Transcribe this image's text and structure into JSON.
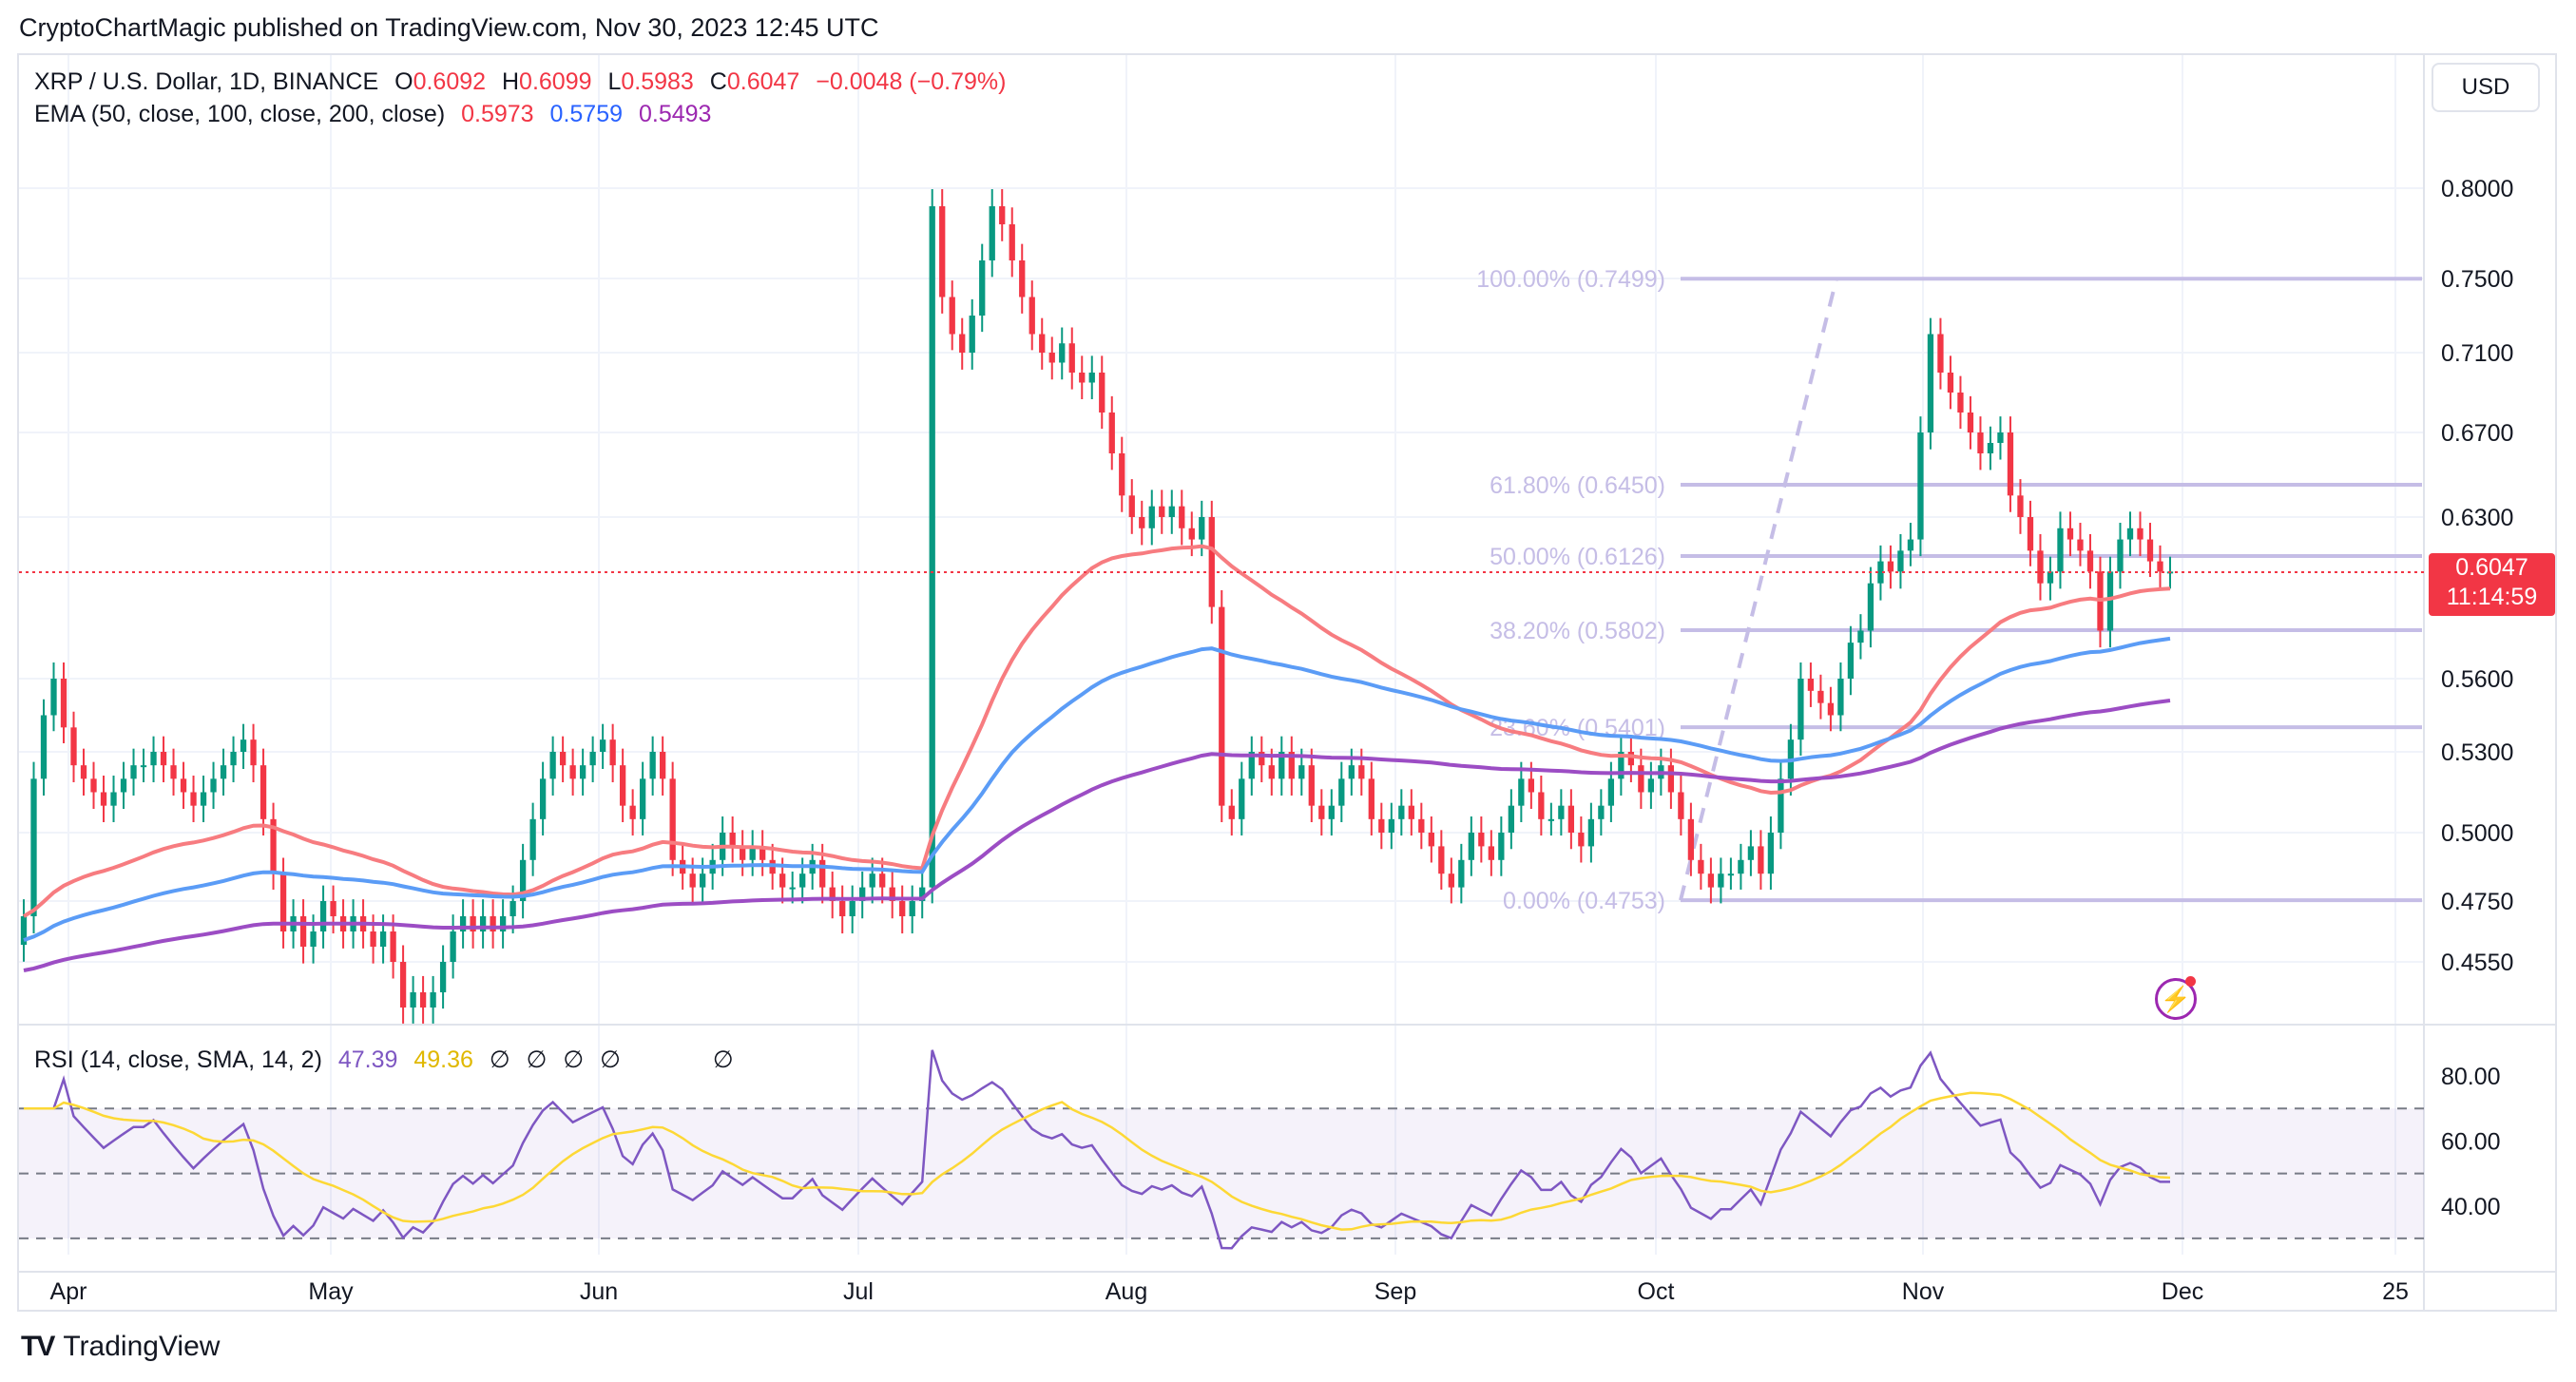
{
  "publisher": "CryptoChartMagic published on TradingView.com, Nov 30, 2023 12:45 UTC",
  "legend": {
    "symbol": "XRP / U.S. Dollar, 1D, BINANCE",
    "o_label": "O",
    "o": "0.6092",
    "h_label": "H",
    "h": "0.6099",
    "l_label": "L",
    "l": "0.5983",
    "c_label": "C",
    "c": "0.6047",
    "change": "−0.0048 (−0.79%)",
    "ema_label": "EMA (50, close, 100, close, 200, close)",
    "ema50": "0.5973",
    "ema100": "0.5759",
    "ema200": "0.5493",
    "rsi_label": "RSI (14, close, SMA, 14, 2)",
    "rsi": "47.39",
    "rsi_sma": "49.36",
    "na_glyph": "∅"
  },
  "currency": "USD",
  "last_price": "0.6047",
  "countdown": "11:14:59",
  "brand": "TradingView",
  "brand_mark": "TV",
  "bolt_icon": "⚡",
  "colors": {
    "up": "#089981",
    "down": "#f23645",
    "ema50": "#f77c80",
    "ema100": "#5b9cf6",
    "ema200": "#9c4dc4",
    "rsi": "#7e57c2",
    "rsi_sma": "#fdd835",
    "fib": "#c5bde6"
  },
  "chart_data": [
    {
      "type": "candlestick",
      "title": "XRP / U.S. Dollar, 1D, BINANCE",
      "price_axis_ticks": [
        "0.8000",
        "0.7500",
        "0.7100",
        "0.6700",
        "0.6300",
        "0.5600",
        "0.5300",
        "0.5000",
        "0.4750",
        "0.4550"
      ],
      "time_axis_ticks": [
        "Apr",
        "May",
        "Jun",
        "Jul",
        "Aug",
        "Sep",
        "Oct",
        "Nov",
        "Dec",
        "25"
      ],
      "ohlc_last": {
        "open": 0.6092,
        "high": 0.6099,
        "low": 0.5983,
        "close": 0.6047
      },
      "candles_close": [
        0.47,
        0.52,
        0.545,
        0.56,
        0.54,
        0.525,
        0.52,
        0.515,
        0.51,
        0.515,
        0.52,
        0.525,
        0.525,
        0.53,
        0.525,
        0.52,
        0.515,
        0.51,
        0.515,
        0.52,
        0.525,
        0.53,
        0.535,
        0.525,
        0.505,
        0.485,
        0.465,
        0.47,
        0.46,
        0.465,
        0.475,
        0.47,
        0.465,
        0.47,
        0.465,
        0.46,
        0.465,
        0.455,
        0.44,
        0.445,
        0.44,
        0.445,
        0.455,
        0.465,
        0.47,
        0.465,
        0.47,
        0.465,
        0.47,
        0.475,
        0.49,
        0.505,
        0.52,
        0.53,
        0.525,
        0.52,
        0.525,
        0.53,
        0.535,
        0.525,
        0.51,
        0.505,
        0.52,
        0.53,
        0.52,
        0.49,
        0.485,
        0.48,
        0.485,
        0.49,
        0.5,
        0.495,
        0.49,
        0.495,
        0.49,
        0.485,
        0.48,
        0.48,
        0.485,
        0.49,
        0.48,
        0.475,
        0.47,
        0.475,
        0.48,
        0.485,
        0.48,
        0.475,
        0.47,
        0.475,
        0.48,
        0.79,
        0.74,
        0.72,
        0.71,
        0.73,
        0.76,
        0.79,
        0.78,
        0.76,
        0.74,
        0.72,
        0.71,
        0.705,
        0.715,
        0.7,
        0.695,
        0.7,
        0.68,
        0.66,
        0.64,
        0.63,
        0.625,
        0.635,
        0.63,
        0.635,
        0.625,
        0.62,
        0.63,
        0.59,
        0.51,
        0.505,
        0.52,
        0.53,
        0.525,
        0.52,
        0.53,
        0.52,
        0.525,
        0.51,
        0.505,
        0.51,
        0.52,
        0.525,
        0.52,
        0.505,
        0.5,
        0.505,
        0.51,
        0.505,
        0.5,
        0.495,
        0.485,
        0.48,
        0.49,
        0.5,
        0.495,
        0.49,
        0.5,
        0.51,
        0.52,
        0.515,
        0.505,
        0.505,
        0.51,
        0.5,
        0.495,
        0.505,
        0.51,
        0.52,
        0.53,
        0.525,
        0.515,
        0.52,
        0.525,
        0.515,
        0.505,
        0.49,
        0.485,
        0.48,
        0.485,
        0.485,
        0.49,
        0.495,
        0.485,
        0.5,
        0.52,
        0.535,
        0.56,
        0.555,
        0.55,
        0.545,
        0.56,
        0.575,
        0.58,
        0.6,
        0.61,
        0.605,
        0.615,
        0.62,
        0.67,
        0.72,
        0.7,
        0.69,
        0.68,
        0.67,
        0.66,
        0.665,
        0.67,
        0.64,
        0.63,
        0.615,
        0.6,
        0.605,
        0.625,
        0.62,
        0.615,
        0.605,
        0.58,
        0.605,
        0.62,
        0.625,
        0.62,
        0.61,
        0.605,
        0.605
      ],
      "fibonacci_levels": [
        {
          "label": "100.00% (0.7499)",
          "value": 0.7499
        },
        {
          "label": "61.80% (0.6450)",
          "value": 0.645
        },
        {
          "label": "50.00% (0.6126)",
          "value": 0.6126
        },
        {
          "label": "38.20% (0.5802)",
          "value": 0.5802
        },
        {
          "label": "23.60% (0.5401)",
          "value": 0.5401
        },
        {
          "label": "0.00% (0.4753)",
          "value": 0.4753
        }
      ],
      "ema": [
        {
          "name": "EMA 50",
          "last": 0.5973
        },
        {
          "name": "EMA 100",
          "last": 0.5759
        },
        {
          "name": "EMA 200",
          "last": 0.5493
        }
      ]
    },
    {
      "type": "line",
      "title": "RSI (14, close, SMA, 14, 2)",
      "y_ticks": [
        "80.00",
        "60.00",
        "40.00"
      ],
      "bands": [
        70,
        50,
        30
      ],
      "series": [
        {
          "name": "RSI",
          "last": 47.39
        },
        {
          "name": "SMA",
          "last": 49.36
        }
      ]
    }
  ]
}
